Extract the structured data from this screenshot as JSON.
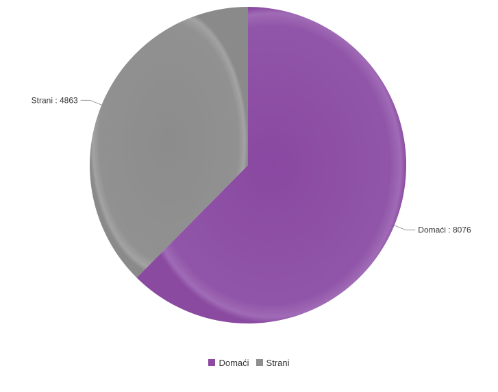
{
  "chart_data": {
    "type": "pie",
    "title": "",
    "slices": [
      {
        "label": "Domaći",
        "value": 8076,
        "color": "#8c4aa3"
      },
      {
        "label": "Strani",
        "value": 4863,
        "color": "#8f8f8f"
      }
    ],
    "data_labels": [
      "Domaći : 8076",
      "Strani : 4863"
    ],
    "legend": {
      "placement": "bottom-center",
      "items": [
        "Domaći",
        "Strani"
      ]
    }
  }
}
